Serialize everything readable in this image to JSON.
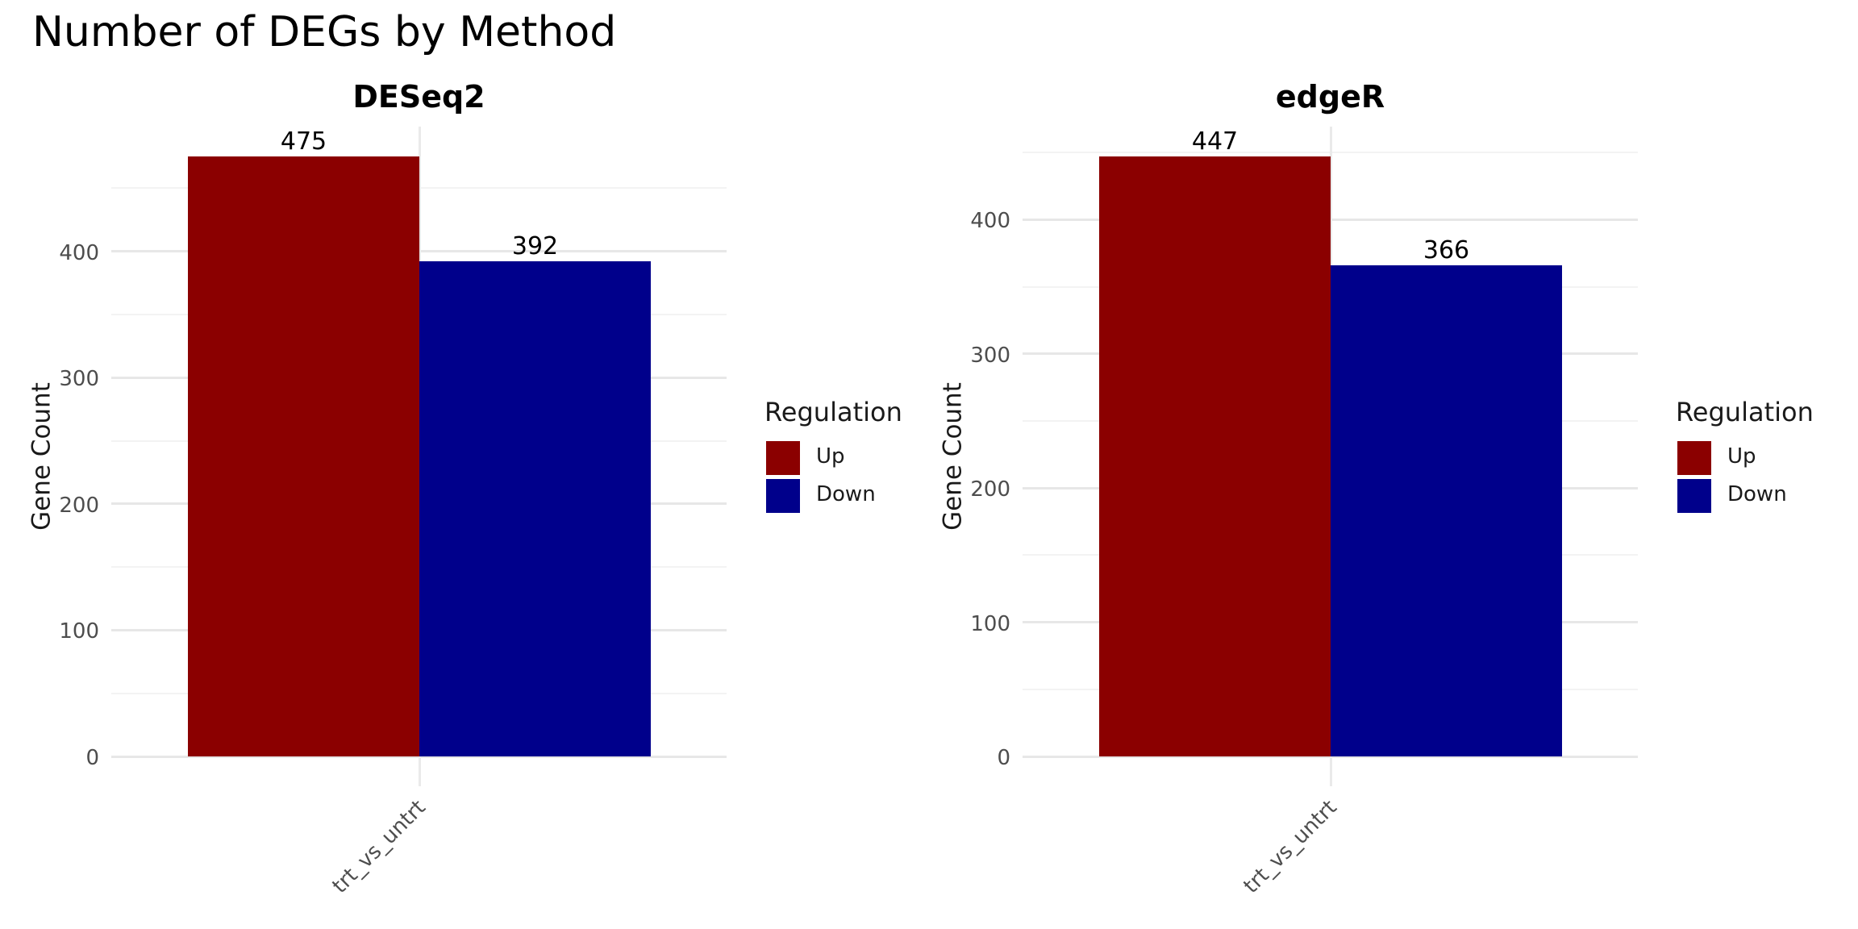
{
  "main_title": "Number of DEGs by Method",
  "colors": {
    "up": "#8B0000",
    "down": "#00008B",
    "grid_major": "#e7e7e7",
    "grid_minor": "#f3f3f3",
    "axis_text": "#4d4d4d",
    "title_text": "#000000"
  },
  "chart_data": [
    {
      "type": "bar",
      "title": "DESeq2",
      "xlabel": "",
      "ylabel": "Gene Count",
      "categories": [
        "trt_vs_untrt"
      ],
      "series": [
        {
          "name": "Up",
          "color": "#8B0000",
          "values": [
            475
          ]
        },
        {
          "name": "Down",
          "color": "#00008B",
          "values": [
            392
          ]
        }
      ],
      "yticks": [
        0,
        100,
        200,
        300,
        400
      ],
      "ylim": [
        0,
        498.75
      ],
      "grid": true,
      "legend_title": "Regulation",
      "legend_position": "right"
    },
    {
      "type": "bar",
      "title": "edgeR",
      "xlabel": "",
      "ylabel": "Gene Count",
      "categories": [
        "trt_vs_untrt"
      ],
      "series": [
        {
          "name": "Up",
          "color": "#8B0000",
          "values": [
            447
          ]
        },
        {
          "name": "Down",
          "color": "#00008B",
          "values": [
            366
          ]
        }
      ],
      "yticks": [
        0,
        100,
        200,
        300,
        400
      ],
      "ylim": [
        0,
        469.35
      ],
      "grid": true,
      "legend_title": "Regulation",
      "legend_position": "right"
    }
  ]
}
